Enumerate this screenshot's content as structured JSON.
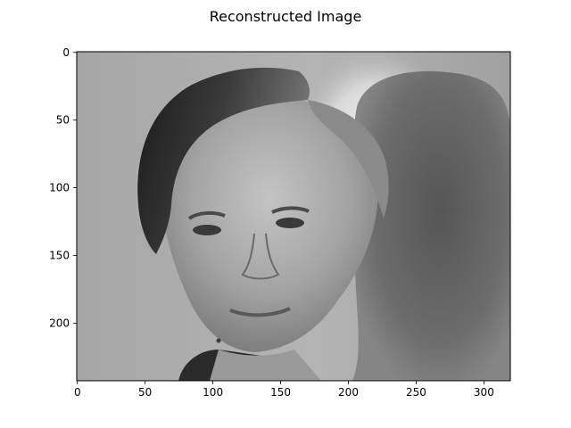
{
  "chart_data": {
    "type": "heatmap",
    "title": "Reconstructed Image",
    "colormap": "gray",
    "image_size": {
      "width": 320,
      "height": 243
    },
    "extent": {
      "x": [
        -0.5,
        319.5
      ],
      "y": [
        242.5,
        -0.5
      ]
    },
    "x_ticks": [
      0,
      50,
      100,
      150,
      200,
      250,
      300
    ],
    "y_ticks": [
      0,
      50,
      100,
      150,
      200
    ],
    "xlabel": "",
    "ylabel": "",
    "grid": false,
    "image_content": "grayscale reconstructed photo of a man's face"
  }
}
